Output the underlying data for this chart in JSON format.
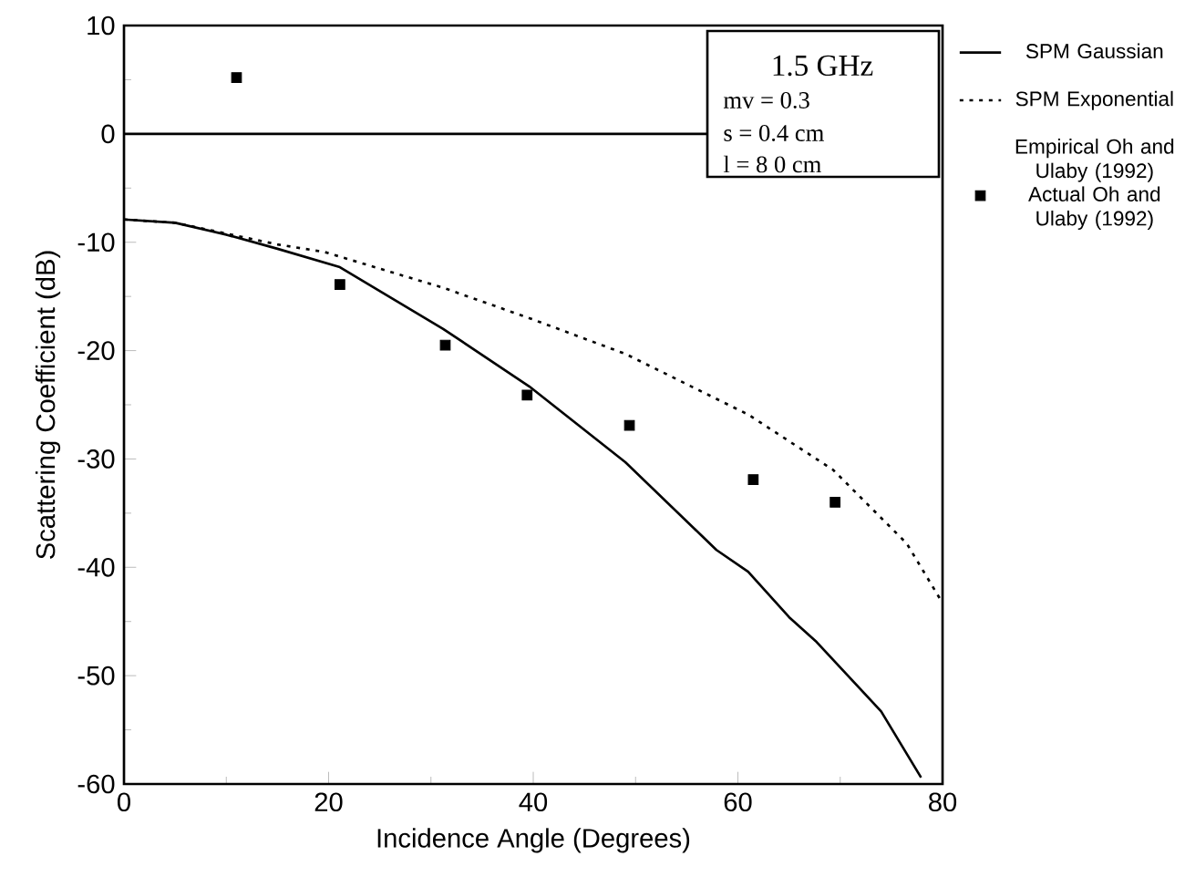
{
  "chart_data": {
    "type": "line",
    "xlabel": "Incidence Angle (Degrees)",
    "ylabel": "Scattering Coefficient (dB)",
    "xlim": [
      0,
      80
    ],
    "ylim": [
      -60,
      10
    ],
    "xticks": [
      0,
      20,
      40,
      60,
      80
    ],
    "yticks": [
      -60,
      -50,
      -40,
      -30,
      -20,
      -10,
      0,
      10
    ],
    "legend": "right",
    "grid": false,
    "series": [
      {
        "name": "SPM Gaussian",
        "color": "#000000",
        "line_style": "solid",
        "x": [
          0,
          5,
          10,
          15,
          21.1,
          31.2,
          39.6,
          49,
          57.9,
          61,
          65,
          67.7,
          74,
          77.9
        ],
        "values": [
          -7.9,
          -8.2,
          -9.3,
          -10.6,
          -12.3,
          -18,
          -23.3,
          -30.3,
          -38.4,
          -40.4,
          -44.6,
          -46.9,
          -53.3,
          -59.4
        ]
      },
      {
        "name": "SPM Exponential",
        "color": "#000000",
        "line_style": "dotted",
        "x": [
          0,
          5,
          10,
          15,
          19.6,
          31.2,
          39.6,
          49,
          61,
          69.3,
          76.5,
          80
        ],
        "values": [
          -7.9,
          -8.2,
          -9.2,
          -10.2,
          -10.9,
          -14.2,
          -17,
          -20.3,
          -25.9,
          -31,
          -37.8,
          -43.3
        ]
      },
      {
        "name": "Actual Oh and Ulaby (1992)",
        "type": "scatter",
        "marker": "square",
        "color": "#000000",
        "x": [
          11,
          21.1,
          31.4,
          39.4,
          49.4,
          61.5,
          69.5
        ],
        "values": [
          5.2,
          -13.9,
          -19.5,
          -24.1,
          -26.9,
          -31.9,
          -34
        ]
      }
    ],
    "ref_lines": [
      {
        "axis": "y",
        "value": 0,
        "color": "#000000"
      }
    ],
    "annotations": [
      "1.5 GHz",
      "mv = 0.3",
      "s = 0.4 cm",
      "l = 8 0 cm",
      "Empirical Oh and Ulaby (1992)"
    ]
  }
}
